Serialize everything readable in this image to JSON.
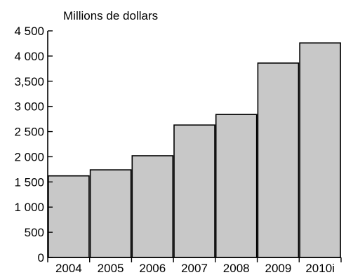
{
  "chart_data": {
    "type": "bar",
    "ylabel": "Millions de dollars",
    "categories": [
      "2004",
      "2005",
      "2006",
      "2007",
      "2008",
      "2009",
      "2010i"
    ],
    "values": [
      1620,
      1740,
      2020,
      2630,
      2840,
      3860,
      4260
    ],
    "ylim": [
      0,
      4500
    ],
    "yticks": [
      0,
      500,
      1000,
      1500,
      2000,
      2500,
      3000,
      3500,
      4000,
      4500
    ],
    "ytick_labels": [
      "0",
      "500",
      "1 000",
      "1 500",
      "2 000",
      "2 500",
      "3 000",
      "3,500",
      "4 000",
      "4 500"
    ],
    "grid": false,
    "bar_color": "#c8c8c8",
    "edge_color": "#000000"
  }
}
